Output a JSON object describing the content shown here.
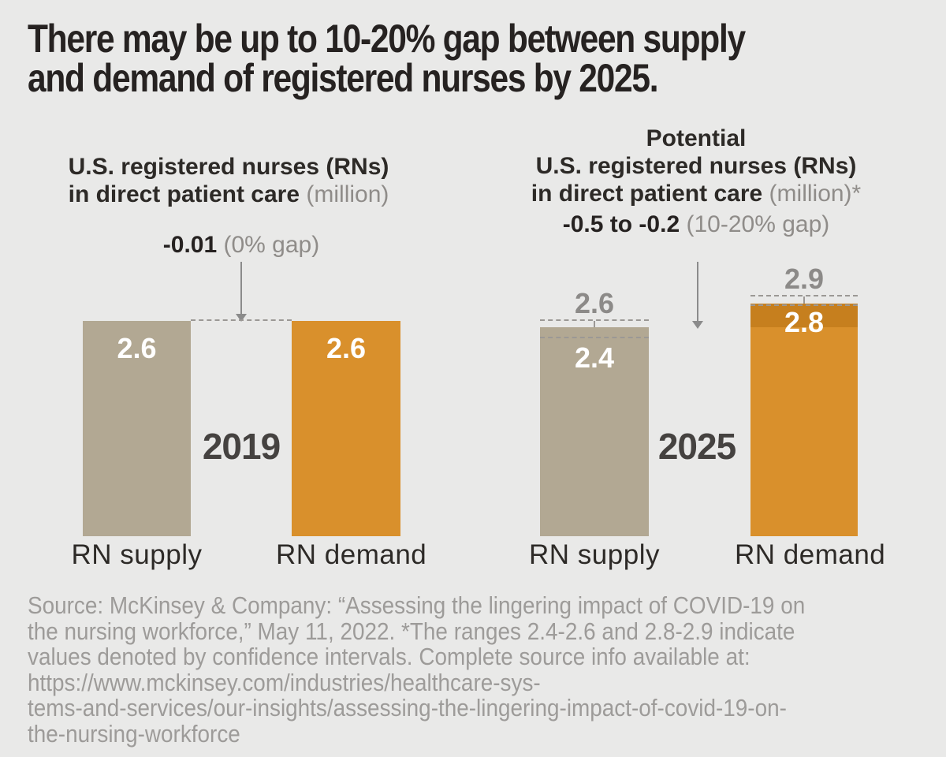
{
  "title": {
    "line1": "There may be up to 10-20% gap between supply",
    "line2": "and demand of registered nurses by 2025."
  },
  "charts": [
    {
      "year": "2019",
      "header": {
        "line1": "U.S. registered nurses (RNs)",
        "line2": "in direct patient care",
        "unit": "(million)"
      },
      "annotation": {
        "value": "-0.01",
        "gap": "(0% gap)"
      },
      "bars": [
        {
          "label": "RN supply",
          "value": "2.6"
        },
        {
          "label": "RN demand",
          "value": "2.6"
        }
      ]
    },
    {
      "year": "2025",
      "header": {
        "line0": "Potential",
        "line1": "U.S. registered nurses (RNs)",
        "line2": "in direct patient care",
        "unit": "(million)*"
      },
      "annotation": {
        "value": "-0.5 to -0.2",
        "gap": "(10-20% gap)"
      },
      "bars": [
        {
          "label": "RN supply",
          "value": "2.4",
          "ci_upper": "2.6"
        },
        {
          "label": "RN demand",
          "value": "2.8",
          "ci_upper": "2.9"
        }
      ]
    }
  ],
  "source": {
    "lines": [
      "Source: McKinsey & Company: “Assessing the lingering impact of COVID-19 on",
      "the nursing workforce,” May 11, 2022. *The ranges 2.4-2.6 and 2.8-2.9 indicate",
      "values denoted by confidence intervals. Complete source info available at:",
      "https://www.mckinsey.com/industries/healthcare-sys-",
      "tems-and-services/our-insights/assessing-the-lingering-impact-of-covid-19-on-",
      "the-nursing-workforce"
    ]
  },
  "colors": {
    "background": "#e9e9e8",
    "title_text": "#262221",
    "dark_text": "#2d2a27",
    "muted_text": "#8f8c89",
    "supply_bar": "#b2a893",
    "demand_bar": "#d9902c",
    "demand_excess_cap": "#c67f1e",
    "value_text": "#ffffff",
    "ci_text": "#8c8a88",
    "year_text": "#454240",
    "arrow": "#8b8b8b",
    "dash": "#9b9895",
    "source_text": "#9d9b99"
  },
  "chart_data": [
    {
      "type": "bar",
      "title": "U.S. registered nurses (RNs) in direct patient care",
      "unit": "million",
      "year": "2019",
      "categories": [
        "RN supply",
        "RN demand"
      ],
      "values": [
        2.6,
        2.6
      ],
      "value_labels": [
        "2.6",
        "2.6"
      ],
      "gap_annotation": {
        "value": -0.01,
        "label": "-0.01 (0% gap)"
      },
      "ylim": [
        0,
        3.2
      ],
      "grid": false,
      "legend": false
    },
    {
      "type": "bar",
      "title": "Potential U.S. registered nurses (RNs) in direct patient care*",
      "unit": "million",
      "year": "2025",
      "categories": [
        "RN supply",
        "RN demand"
      ],
      "values": [
        2.4,
        2.8
      ],
      "ci_ranges": [
        [
          2.4,
          2.6
        ],
        [
          2.8,
          2.9
        ]
      ],
      "bar_draw_values": [
        2.52,
        2.81
      ],
      "value_labels": [
        "2.4",
        "2.8"
      ],
      "ci_labels": [
        "2.6",
        "2.9"
      ],
      "gap_annotation": {
        "range": [
          -0.5,
          -0.2
        ],
        "label": "-0.5 to -0.2 (10-20% gap)"
      },
      "ylim": [
        0,
        3.2
      ],
      "grid": false,
      "legend": false
    }
  ]
}
